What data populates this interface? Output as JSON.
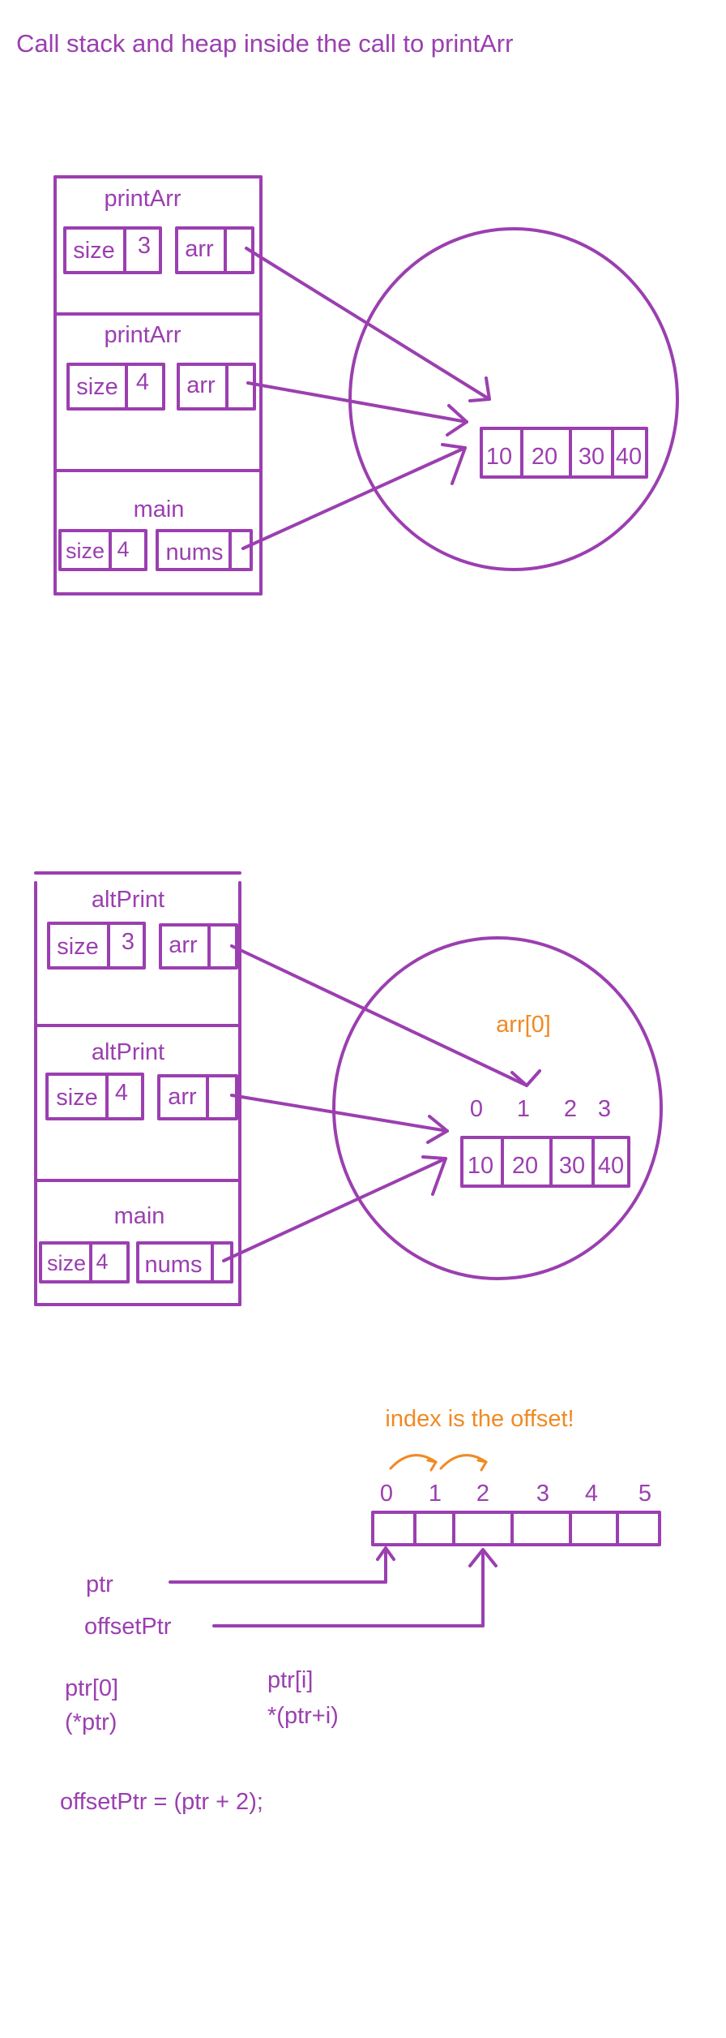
{
  "title": "Call stack and heap inside the call to printArr",
  "colors": {
    "ink": "#9b3fb0",
    "accent": "#f08a24",
    "background": "#ffffff"
  },
  "diagram1": {
    "frames": [
      {
        "name": "printArr",
        "size_label": "size",
        "size_value": "3",
        "ptr_label": "arr"
      },
      {
        "name": "printArr",
        "size_label": "size",
        "size_value": "4",
        "ptr_label": "arr"
      },
      {
        "name": "main",
        "size_label": "size",
        "size_value": "4",
        "ptr_label": "nums"
      }
    ],
    "array": [
      "10",
      "20",
      "30",
      "40"
    ]
  },
  "diagram2": {
    "frames": [
      {
        "name": "altPrint",
        "size_label": "size",
        "size_value": "3",
        "ptr_label": "arr"
      },
      {
        "name": "altPrint",
        "size_label": "size",
        "size_value": "4",
        "ptr_label": "arr"
      },
      {
        "name": "main",
        "size_label": "size",
        "size_value": "4",
        "ptr_label": "nums"
      }
    ],
    "indices": [
      "0",
      "1",
      "2",
      "3"
    ],
    "array": [
      "10",
      "20",
      "30",
      "40"
    ],
    "element_label": "arr[0]"
  },
  "diagram3": {
    "note": "index is the offset!",
    "indices": [
      "0",
      "1",
      "2",
      "3",
      "4",
      "5"
    ],
    "ptr_label": "ptr",
    "offset_ptr_label": "offsetPtr",
    "expr_index0": "ptr[0]",
    "expr_deref0": "(*ptr)",
    "expr_index_i": "ptr[i]",
    "expr_deref_i": "*(ptr+i)",
    "assignment": "offsetPtr = (ptr + 2);"
  }
}
